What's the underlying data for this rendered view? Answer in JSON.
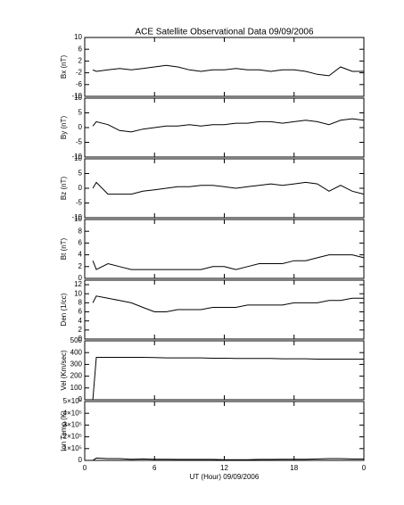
{
  "chart_data": [
    {
      "type": "line",
      "title": "ACE Satellite Observational Data   09/09/2006",
      "ylabel": "Bx (nT)",
      "color": "#000000",
      "x": [
        0.7,
        1,
        2,
        3,
        4,
        5,
        6,
        7,
        8,
        9,
        10,
        11,
        12,
        13,
        14,
        15,
        16,
        17,
        18,
        19,
        20,
        21,
        22,
        23,
        24
      ],
      "values": [
        -1,
        -1.5,
        -1,
        -0.5,
        -1,
        -0.5,
        0,
        0.5,
        0,
        -1,
        -1.5,
        -1,
        -1,
        -0.5,
        -1,
        -1,
        -1.5,
        -1,
        -1,
        -1.5,
        -2.5,
        -3,
        0,
        -1.5,
        -1.5
      ],
      "ylim": [
        -10,
        10
      ],
      "yticks": [
        -10,
        -6,
        -2,
        2,
        6,
        10
      ]
    },
    {
      "type": "line",
      "ylabel": "By (nT)",
      "color": "#000000",
      "x": [
        0.7,
        1,
        2,
        3,
        4,
        5,
        6,
        7,
        8,
        9,
        10,
        11,
        12,
        13,
        14,
        15,
        16,
        17,
        18,
        19,
        20,
        21,
        22,
        23,
        24
      ],
      "values": [
        0.5,
        2,
        1,
        -1,
        -1.5,
        -0.5,
        0,
        0.5,
        0.5,
        1,
        0.5,
        1,
        1,
        1.5,
        1.5,
        2,
        2,
        1.5,
        2,
        2.5,
        2,
        1,
        2.5,
        3,
        2.5
      ],
      "ylim": [
        -10,
        10
      ],
      "yticks": [
        -10,
        -5,
        0,
        5,
        10
      ]
    },
    {
      "type": "line",
      "ylabel": "Bz (nT)",
      "color": "#000000",
      "x": [
        0.7,
        1,
        2,
        3,
        4,
        5,
        6,
        7,
        8,
        9,
        10,
        11,
        12,
        13,
        14,
        15,
        16,
        17,
        18,
        19,
        20,
        21,
        22,
        23,
        24
      ],
      "values": [
        0,
        2,
        -2,
        -2,
        -2,
        -1,
        -0.5,
        0,
        0.5,
        0.5,
        1,
        1,
        0.5,
        0,
        0.5,
        1,
        1.5,
        1,
        1.5,
        2,
        1.5,
        -1,
        1,
        -1,
        -2
      ],
      "ylim": [
        -10,
        10
      ],
      "yticks": [
        -10,
        -5,
        0,
        5,
        10
      ]
    },
    {
      "type": "line",
      "ylabel": "Bt (nT)",
      "color": "#000000",
      "x": [
        0.7,
        1,
        2,
        3,
        4,
        5,
        6,
        7,
        8,
        9,
        10,
        11,
        12,
        13,
        14,
        15,
        16,
        17,
        18,
        19,
        20,
        21,
        22,
        23,
        24
      ],
      "values": [
        3,
        1.5,
        2.5,
        2,
        1.5,
        1.5,
        1.5,
        1.5,
        1.5,
        1.5,
        1.5,
        2,
        2,
        1.5,
        2,
        2.5,
        2.5,
        2.5,
        3,
        3,
        3.5,
        4,
        4,
        4,
        3.5
      ],
      "ylim": [
        0,
        10
      ],
      "yticks": [
        0,
        2,
        4,
        6,
        8,
        10
      ]
    },
    {
      "type": "line",
      "ylabel": "Den (1/cc)",
      "color": "#000000",
      "x": [
        0.7,
        1,
        2,
        3,
        4,
        5,
        6,
        7,
        8,
        9,
        10,
        11,
        12,
        13,
        14,
        15,
        16,
        17,
        18,
        19,
        20,
        21,
        22,
        23,
        24
      ],
      "values": [
        8,
        9.5,
        9,
        8.5,
        8,
        7,
        6,
        6,
        6.5,
        6.5,
        6.5,
        7,
        7,
        7,
        7.5,
        7.5,
        7.5,
        7.5,
        8,
        8,
        8,
        8.5,
        8.5,
        9,
        9
      ],
      "ylim": [
        0,
        13
      ],
      "yticks": [
        0,
        2,
        4,
        6,
        8,
        10,
        12
      ]
    },
    {
      "type": "line",
      "ylabel": "Vel (Km/sec)",
      "color": "#000000",
      "x": [
        0.7,
        1,
        2,
        3,
        4,
        5,
        6,
        7,
        8,
        9,
        10,
        11,
        12,
        13,
        14,
        15,
        16,
        17,
        18,
        19,
        20,
        21,
        22,
        23,
        24
      ],
      "values": [
        0,
        360,
        360,
        360,
        360,
        360,
        358,
        355,
        355,
        355,
        355,
        352,
        352,
        350,
        350,
        350,
        350,
        348,
        348,
        348,
        345,
        345,
        345,
        345,
        345
      ],
      "ylim": [
        0,
        500
      ],
      "yticks": [
        0,
        100,
        200,
        300,
        400,
        500
      ]
    },
    {
      "type": "line",
      "ylabel": "Ion Temp (K)",
      "xlabel": "UT (Hour)  09/09/2006",
      "color": "#000000",
      "x": [
        0.7,
        1,
        2,
        3,
        4,
        5,
        6,
        7,
        8,
        9,
        10,
        11,
        12,
        13,
        14,
        15,
        16,
        17,
        18,
        19,
        20,
        21,
        22,
        23,
        24
      ],
      "values": [
        0,
        20000,
        15000,
        15000,
        10000,
        12000,
        10000,
        10000,
        8000,
        8000,
        8000,
        8000,
        5000,
        5000,
        5000,
        8000,
        8000,
        10000,
        10000,
        10000,
        12000,
        15000,
        15000,
        12000,
        12000
      ],
      "ylim": [
        0,
        500000
      ],
      "yticks": [
        0,
        {
          "value": 100000,
          "label": "1×10⁵"
        },
        {
          "value": 200000,
          "label": "2×10⁵"
        },
        {
          "value": 300000,
          "label": "3×10⁵"
        },
        {
          "value": 400000,
          "label": "4×10⁵"
        },
        {
          "value": 500000,
          "label": "5×10⁵"
        }
      ],
      "xlim": [
        0,
        24
      ],
      "xticks": [
        0,
        6,
        12,
        18,
        {
          "value": 24,
          "label": "0"
        }
      ]
    }
  ]
}
